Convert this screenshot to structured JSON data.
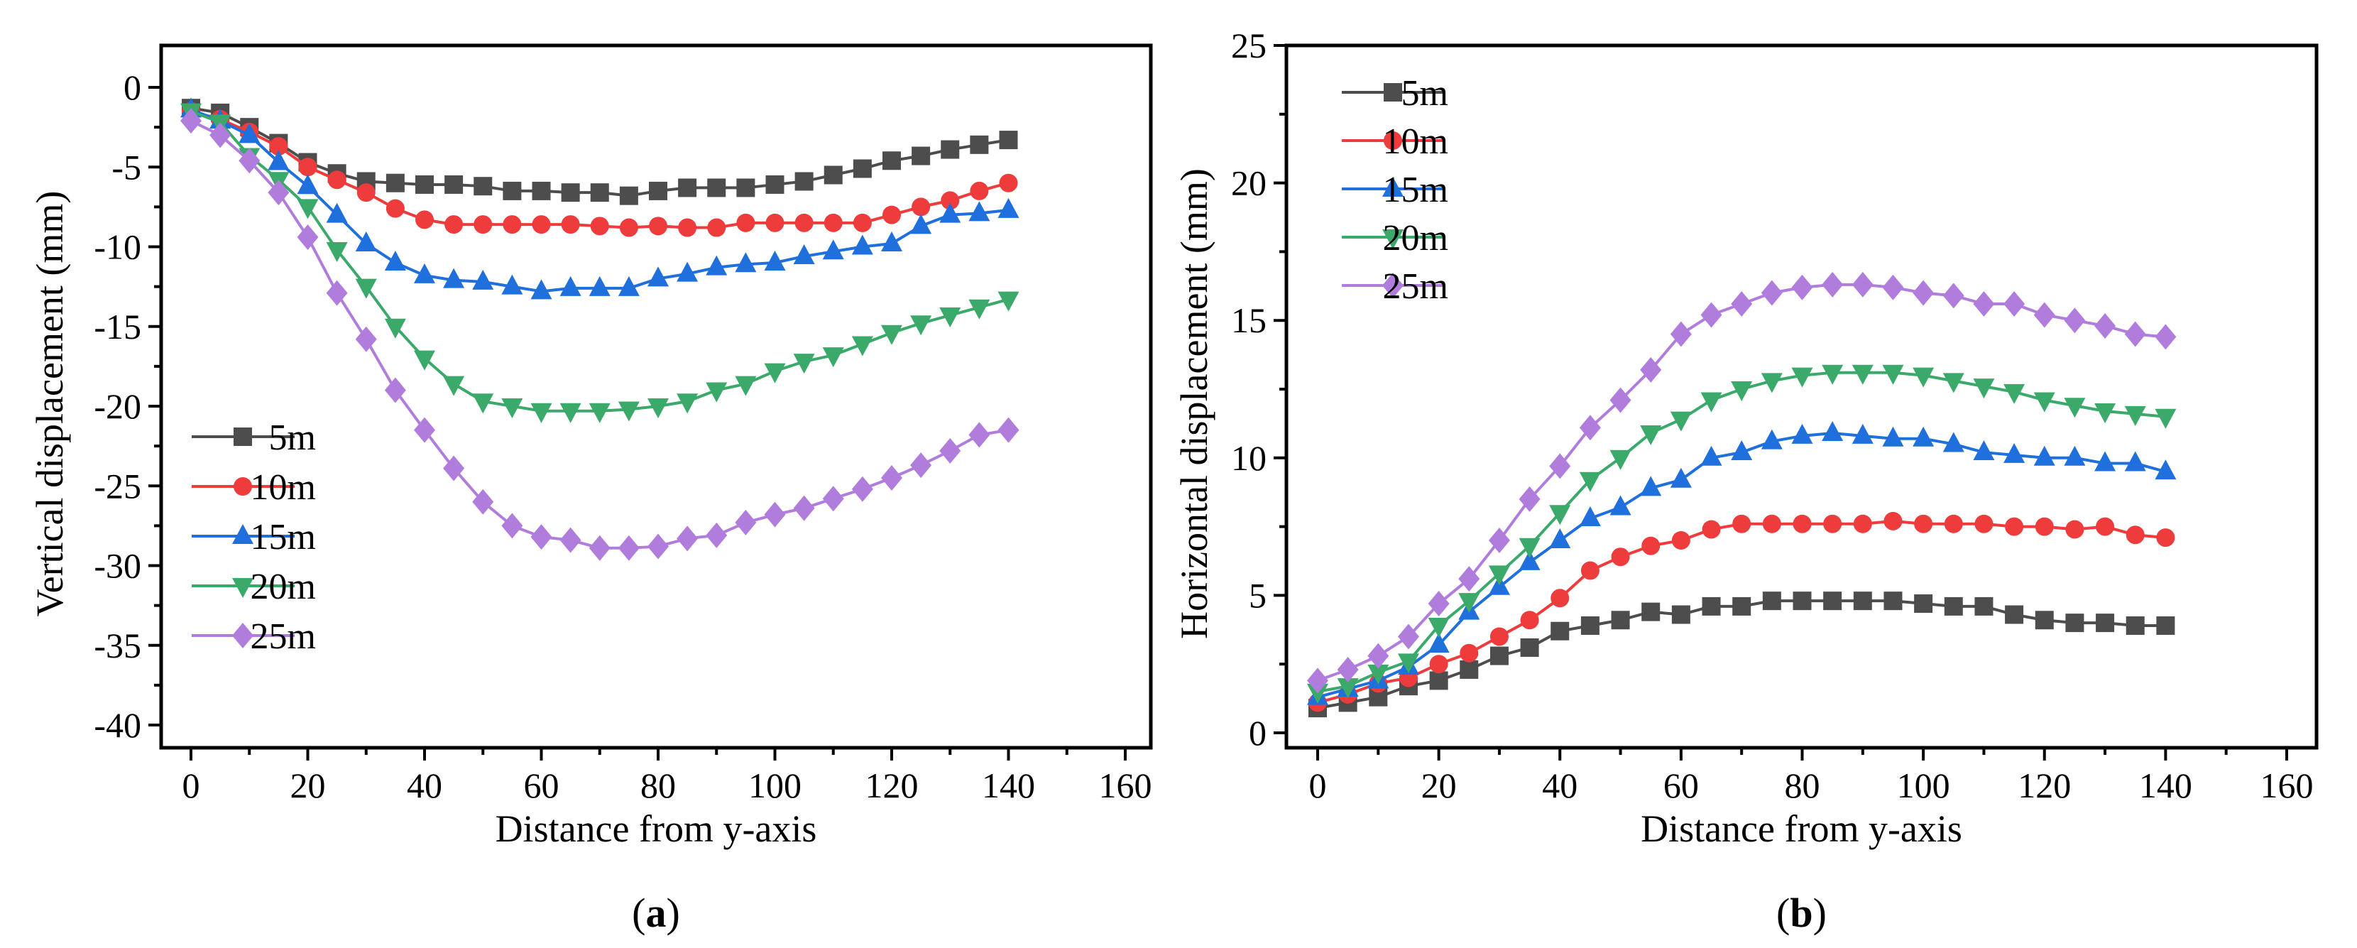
{
  "colors": {
    "5m": "#4d4d4d",
    "10m": "#ee3b3b",
    "15m": "#1f6fdc",
    "20m": "#3aa96a",
    "25m": "#b07ddc"
  },
  "chart_data": [
    {
      "type": "line",
      "caption_letter": "a",
      "xlabel": "Distance from y-axis",
      "ylabel": "Vertical displacement (mm)",
      "xlim": [
        0,
        160
      ],
      "ylim": [
        -40,
        0
      ],
      "xticks": [
        0,
        20,
        40,
        60,
        80,
        100,
        120,
        140,
        160
      ],
      "yticks": [
        0,
        -5,
        -10,
        -15,
        -20,
        -25,
        -30,
        -35,
        -40
      ],
      "legend_position": "bottom-left",
      "x": [
        0,
        5,
        10,
        15,
        20,
        25,
        30,
        35,
        40,
        45,
        50,
        55,
        60,
        65,
        70,
        75,
        80,
        85,
        90,
        95,
        100,
        105,
        110,
        115,
        120,
        125,
        130,
        135,
        140
      ],
      "series": [
        {
          "name": "5m",
          "marker": "square",
          "values": [
            -1.3,
            -1.6,
            -2.5,
            -3.5,
            -4.7,
            -5.4,
            -5.9,
            -6.0,
            -6.1,
            -6.1,
            -6.2,
            -6.5,
            -6.5,
            -6.6,
            -6.6,
            -6.8,
            -6.5,
            -6.3,
            -6.3,
            -6.3,
            -6.1,
            -5.9,
            -5.5,
            -5.1,
            -4.6,
            -4.3,
            -3.9,
            -3.6,
            -3.3
          ]
        },
        {
          "name": "10m",
          "marker": "circle",
          "values": [
            -1.5,
            -2.0,
            -2.8,
            -3.7,
            -5.0,
            -5.8,
            -6.6,
            -7.6,
            -8.3,
            -8.6,
            -8.6,
            -8.6,
            -8.6,
            -8.6,
            -8.7,
            -8.8,
            -8.7,
            -8.8,
            -8.8,
            -8.5,
            -8.5,
            -8.5,
            -8.5,
            -8.5,
            -8.0,
            -7.5,
            -7.1,
            -6.5,
            -6.0
          ]
        },
        {
          "name": "15m",
          "marker": "triangle-up",
          "values": [
            -1.4,
            -2.1,
            -3.0,
            -4.7,
            -6.2,
            -8.0,
            -9.8,
            -11.0,
            -11.8,
            -12.1,
            -12.2,
            -12.5,
            -12.8,
            -12.6,
            -12.6,
            -12.6,
            -12.0,
            -11.7,
            -11.3,
            -11.1,
            -11.0,
            -10.6,
            -10.3,
            -10.0,
            -9.8,
            -8.7,
            -8.0,
            -7.9,
            -7.7
          ]
        },
        {
          "name": "20m",
          "marker": "triangle-down",
          "values": [
            -1.5,
            -2.2,
            -4.3,
            -5.8,
            -7.5,
            -10.2,
            -12.5,
            -15.0,
            -17.0,
            -18.6,
            -19.7,
            -20.0,
            -20.3,
            -20.3,
            -20.3,
            -20.2,
            -20.0,
            -19.7,
            -19.0,
            -18.6,
            -17.8,
            -17.2,
            -16.8,
            -16.1,
            -15.4,
            -14.8,
            -14.3,
            -13.8,
            -13.3
          ]
        },
        {
          "name": "25m",
          "marker": "diamond",
          "values": [
            -2.1,
            -3.0,
            -4.6,
            -6.6,
            -9.4,
            -12.9,
            -15.8,
            -19.0,
            -21.5,
            -23.9,
            -26.0,
            -27.5,
            -28.2,
            -28.4,
            -28.9,
            -28.9,
            -28.8,
            -28.3,
            -28.1,
            -27.3,
            -26.8,
            -26.4,
            -25.8,
            -25.2,
            -24.5,
            -23.7,
            -22.8,
            -21.8,
            -21.5
          ]
        }
      ]
    },
    {
      "type": "line",
      "caption_letter": "b",
      "xlabel": "Distance from y-axis",
      "ylabel": "Horizontal displacement (mm)",
      "xlim": [
        0,
        160
      ],
      "ylim": [
        0,
        25
      ],
      "xticks": [
        0,
        20,
        40,
        60,
        80,
        100,
        120,
        140,
        160
      ],
      "yticks": [
        0,
        5,
        10,
        15,
        20,
        25
      ],
      "legend_position": "top-left",
      "x": [
        0,
        5,
        10,
        15,
        20,
        25,
        30,
        35,
        40,
        45,
        50,
        55,
        60,
        65,
        70,
        75,
        80,
        85,
        90,
        95,
        100,
        105,
        110,
        115,
        120,
        125,
        130,
        135,
        140
      ],
      "series": [
        {
          "name": "5m",
          "marker": "square",
          "values": [
            0.9,
            1.1,
            1.3,
            1.7,
            1.9,
            2.3,
            2.8,
            3.1,
            3.7,
            3.9,
            4.1,
            4.4,
            4.3,
            4.6,
            4.6,
            4.8,
            4.8,
            4.8,
            4.8,
            4.8,
            4.7,
            4.6,
            4.6,
            4.3,
            4.1,
            4.0,
            4.0,
            3.9,
            3.9
          ]
        },
        {
          "name": "10m",
          "marker": "circle",
          "values": [
            1.1,
            1.4,
            1.8,
            2.0,
            2.5,
            2.9,
            3.5,
            4.1,
            4.9,
            5.9,
            6.4,
            6.8,
            7.0,
            7.4,
            7.6,
            7.6,
            7.6,
            7.6,
            7.6,
            7.7,
            7.6,
            7.6,
            7.6,
            7.5,
            7.5,
            7.4,
            7.5,
            7.2,
            7.1
          ]
        },
        {
          "name": "15m",
          "marker": "triangle-up",
          "values": [
            1.3,
            1.6,
            1.9,
            2.4,
            3.2,
            4.4,
            5.3,
            6.2,
            7.0,
            7.8,
            8.2,
            8.9,
            9.2,
            10.0,
            10.2,
            10.6,
            10.8,
            10.9,
            10.8,
            10.7,
            10.7,
            10.5,
            10.2,
            10.1,
            10.0,
            10.0,
            9.8,
            9.8,
            9.5
          ]
        },
        {
          "name": "20m",
          "marker": "triangle-down",
          "values": [
            1.5,
            1.7,
            2.2,
            2.6,
            3.9,
            4.8,
            5.8,
            6.8,
            8.0,
            9.2,
            10.0,
            10.9,
            11.4,
            12.1,
            12.5,
            12.8,
            13.0,
            13.1,
            13.1,
            13.1,
            13.0,
            12.8,
            12.6,
            12.4,
            12.1,
            11.9,
            11.7,
            11.6,
            11.5
          ]
        },
        {
          "name": "25m",
          "marker": "diamond",
          "values": [
            1.9,
            2.3,
            2.8,
            3.5,
            4.7,
            5.6,
            7.0,
            8.5,
            9.7,
            11.1,
            12.1,
            13.2,
            14.5,
            15.2,
            15.6,
            16.0,
            16.2,
            16.3,
            16.3,
            16.2,
            16.0,
            15.9,
            15.6,
            15.6,
            15.2,
            15.0,
            14.8,
            14.5,
            14.4
          ]
        }
      ]
    }
  ]
}
